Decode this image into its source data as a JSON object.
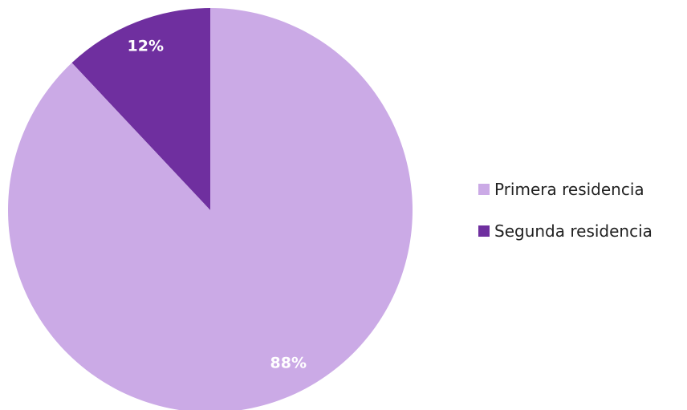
{
  "chart_data": {
    "type": "pie",
    "title": "",
    "start_angle": "12 o'clock, clockwise",
    "slices": [
      {
        "label": "Primera residencia",
        "value": 88,
        "display": "88%",
        "color": "#cbaae6"
      },
      {
        "label": "Segunda residencia",
        "value": 12,
        "display": "12%",
        "color": "#6f2f9f"
      }
    ],
    "legend": {
      "position": "right",
      "items": [
        {
          "label": "Primera residencia",
          "color": "#cbaae6"
        },
        {
          "label": "Segunda residencia",
          "color": "#6f2f9f"
        }
      ]
    }
  }
}
